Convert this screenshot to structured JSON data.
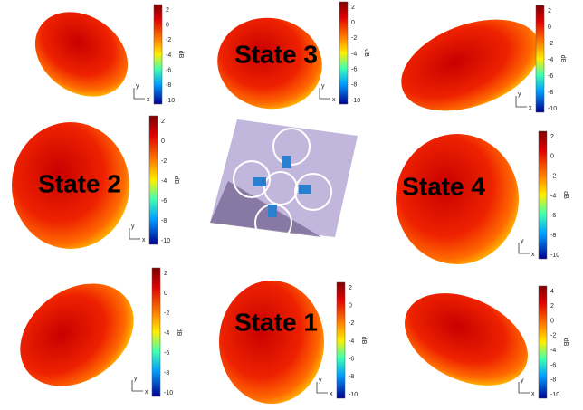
{
  "states": [
    "State 1",
    "State 2",
    "State 3",
    "State 4"
  ],
  "panels": [
    {
      "ticks": [
        2,
        0,
        -2,
        -4,
        -6,
        -8,
        -10
      ],
      "unit": "dB",
      "axes": [
        "y",
        "x"
      ]
    },
    {
      "ticks": [
        2,
        0,
        -2,
        -4,
        -6,
        -8,
        -10
      ],
      "unit": "dB",
      "axes": [
        "y",
        "x"
      ]
    },
    {
      "ticks": [
        2,
        0,
        -2,
        -4,
        -6,
        -8,
        -10
      ],
      "unit": "dB",
      "axes": [
        "y",
        "x"
      ]
    },
    {
      "ticks": [
        2,
        0,
        -2,
        -4,
        -6,
        -8,
        -10
      ],
      "unit": "dB",
      "axes": [
        "y",
        "x"
      ]
    },
    {
      "ticks": [
        2,
        0,
        -2,
        -4,
        -6,
        -8,
        -10
      ],
      "unit": "dB",
      "axes": [
        "y",
        "x"
      ]
    },
    {
      "ticks": [
        2,
        0,
        -2,
        -4,
        -6,
        -8,
        -10
      ],
      "unit": "dB",
      "axes": [
        "y",
        "x"
      ]
    },
    {
      "ticks": [
        2,
        0,
        -2,
        -4,
        -6,
        -8,
        -10
      ],
      "unit": "dB",
      "axes": [
        "y",
        "x"
      ]
    },
    {
      "ticks": [
        4,
        2,
        0,
        -2,
        -4,
        -6,
        -8,
        -10
      ],
      "unit": "dB",
      "axes": [
        "y",
        "x"
      ]
    }
  ]
}
